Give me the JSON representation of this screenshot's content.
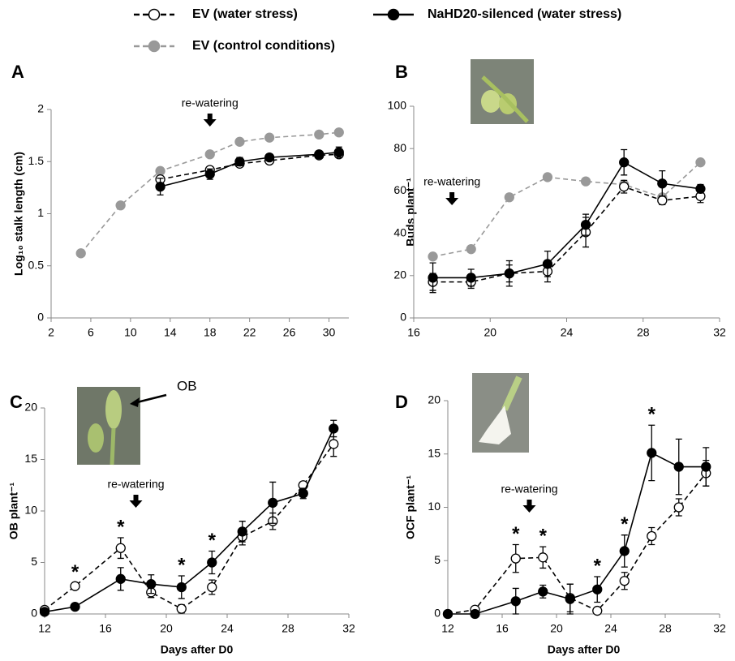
{
  "chart_data": [
    {
      "type": "line",
      "panel": "A",
      "ylabel": "Log₁₀ stalk length (cm)",
      "xlim": [
        2,
        32
      ],
      "xticks": [
        2,
        6,
        10,
        14,
        18,
        22,
        26,
        30
      ],
      "ylim": [
        0,
        2
      ],
      "yticks": [
        0,
        0.5,
        1,
        1.5,
        2
      ],
      "annotations": [
        {
          "text": "re-watering",
          "x": 18
        }
      ],
      "series": [
        {
          "name": "EV (control conditions)",
          "color": "#999999",
          "fill": "#999999",
          "dashed": true,
          "x": [
            5,
            9,
            13,
            18,
            21,
            24,
            29,
            31
          ],
          "values": [
            0.62,
            1.08,
            1.41,
            1.57,
            1.69,
            1.73,
            1.76,
            1.78
          ],
          "errors": [
            null,
            null,
            null,
            null,
            null,
            null,
            null,
            null
          ]
        },
        {
          "name": "EV (water stress)",
          "color": "#000000",
          "fill": "#ffffff",
          "dashed": true,
          "x": [
            13,
            18,
            21,
            24,
            29,
            31
          ],
          "values": [
            1.33,
            1.42,
            1.48,
            1.51,
            1.56,
            1.57
          ],
          "errors": [
            0.03,
            0.03,
            0.03,
            0.03,
            0.02,
            0.03
          ]
        },
        {
          "name": "NaHD20-silenced (water stress)",
          "color": "#000000",
          "fill": "#000000",
          "dashed": false,
          "x": [
            13,
            18,
            21,
            24,
            29,
            31
          ],
          "values": [
            1.26,
            1.38,
            1.5,
            1.54,
            1.57,
            1.59
          ],
          "errors": [
            0.08,
            0.05,
            0.04,
            0.03,
            0.02,
            0.05
          ]
        }
      ]
    },
    {
      "type": "line",
      "panel": "B",
      "ylabel": "Buds  plant⁻¹",
      "xlim": [
        16,
        32
      ],
      "xticks": [
        16,
        20,
        24,
        28,
        32
      ],
      "ylim": [
        0,
        100
      ],
      "yticks": [
        0,
        20,
        40,
        60,
        80,
        100
      ],
      "annotations": [
        {
          "text": "re-watering",
          "x": 18
        }
      ],
      "series": [
        {
          "color": "#999999",
          "fill": "#999999",
          "dashed": true,
          "x": [
            17,
            19,
            21,
            23,
            25,
            27,
            29,
            31
          ],
          "values": [
            29,
            32.5,
            57,
            66.5,
            64.5,
            63,
            57,
            73.5
          ],
          "errors": [
            null,
            null,
            null,
            null,
            null,
            null,
            null,
            null
          ]
        },
        {
          "color": "#000000",
          "fill": "#ffffff",
          "dashed": true,
          "x": [
            17,
            19,
            21,
            23,
            25,
            27,
            29,
            31
          ],
          "values": [
            17,
            17,
            21,
            22,
            40.5,
            62,
            55.5,
            57.5
          ],
          "errors": [
            4,
            3,
            4,
            5,
            7,
            3,
            2,
            3
          ]
        },
        {
          "color": "#000000",
          "fill": "#000000",
          "dashed": false,
          "x": [
            17,
            19,
            21,
            23,
            25,
            27,
            29,
            31
          ],
          "values": [
            19,
            19,
            21,
            25.5,
            44,
            73.5,
            63.5,
            61
          ],
          "errors": [
            7,
            4,
            6,
            6,
            5,
            6,
            6,
            2
          ]
        }
      ]
    },
    {
      "type": "line",
      "panel": "C",
      "ylabel": "OB  plant⁻¹",
      "xlabel": "Days after D0",
      "xlim": [
        12,
        32
      ],
      "xticks": [
        12,
        16,
        20,
        24,
        28,
        32
      ],
      "ylim": [
        0,
        20
      ],
      "yticks": [
        0,
        5,
        10,
        15,
        20
      ],
      "annotations": [
        {
          "text": "re-watering",
          "x": 18
        },
        {
          "text": "OB"
        },
        {
          "text": "*",
          "x": 14
        },
        {
          "text": "*",
          "x": 17
        },
        {
          "text": "*",
          "x": 21
        },
        {
          "text": "*",
          "x": 23
        }
      ],
      "series": [
        {
          "color": "#000000",
          "fill": "#ffffff",
          "dashed": true,
          "x": [
            12,
            14,
            17,
            19,
            21,
            23,
            25,
            27,
            29,
            31
          ],
          "values": [
            0.4,
            2.7,
            6.4,
            2.1,
            0.5,
            2.6,
            7.5,
            9,
            12.5,
            16.5
          ],
          "errors": [
            null,
            0.3,
            1,
            0.5,
            0.4,
            0.7,
            0.8,
            0.8,
            0.3,
            1.2
          ]
        },
        {
          "color": "#000000",
          "fill": "#000000",
          "dashed": false,
          "x": [
            12,
            14,
            17,
            19,
            21,
            23,
            25,
            27,
            29,
            31
          ],
          "values": [
            0.2,
            0.7,
            3.4,
            2.9,
            2.6,
            5,
            8,
            10.8,
            11.7,
            18
          ],
          "errors": [
            null,
            null,
            1.1,
            0.9,
            1.1,
            1.1,
            1,
            2,
            0.5,
            0.8
          ]
        }
      ]
    },
    {
      "type": "line",
      "panel": "D",
      "ylabel": "OCF  plant⁻¹",
      "xlabel": "Days after D0",
      "xlim": [
        12,
        32
      ],
      "xticks": [
        12,
        16,
        20,
        24,
        28,
        32
      ],
      "ylim": [
        0,
        20
      ],
      "yticks": [
        0,
        5,
        10,
        15,
        20
      ],
      "annotations": [
        {
          "text": "re-watering",
          "x": 18
        },
        {
          "text": "*",
          "x": 17
        },
        {
          "text": "*",
          "x": 19
        },
        {
          "text": "*",
          "x": 23
        },
        {
          "text": "*",
          "x": 25
        },
        {
          "text": "*",
          "x": 27
        }
      ],
      "series": [
        {
          "color": "#000000",
          "fill": "#ffffff",
          "dashed": true,
          "x": [
            12,
            14,
            17,
            19,
            21,
            23,
            25,
            27,
            29,
            31
          ],
          "values": [
            0,
            0.4,
            5.2,
            5.3,
            1.5,
            0.3,
            3.1,
            7.3,
            10,
            13.2
          ],
          "errors": [
            null,
            0.3,
            1.3,
            1,
            1.3,
            0.3,
            0.8,
            0.8,
            0.8,
            1.2
          ]
        },
        {
          "color": "#000000",
          "fill": "#000000",
          "dashed": false,
          "x": [
            12,
            14,
            17,
            19,
            21,
            23,
            25,
            27,
            29,
            31
          ],
          "values": [
            0,
            0,
            1.2,
            2.1,
            1.4,
            2.3,
            5.9,
            15.1,
            13.8,
            13.8
          ],
          "errors": [
            null,
            null,
            1.2,
            0.6,
            1.4,
            1.2,
            1.5,
            2.6,
            2.6,
            1.8
          ]
        }
      ]
    }
  ]
}
